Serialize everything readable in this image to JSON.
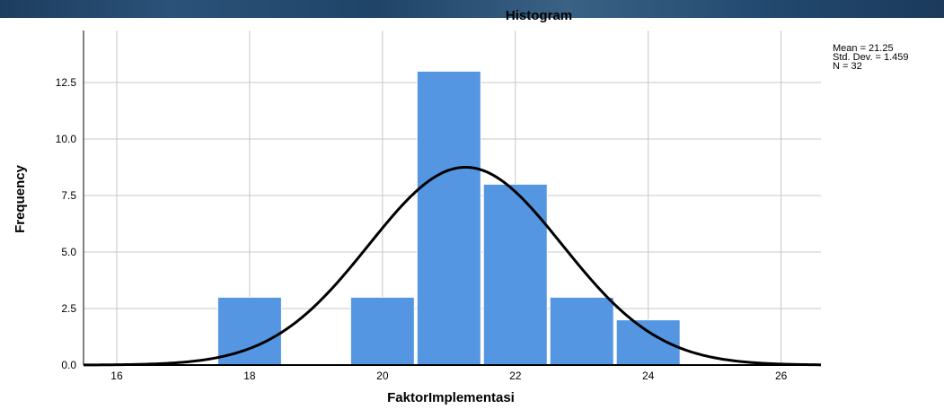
{
  "chart_data": {
    "type": "bar",
    "title": "Histogram",
    "xlabel": "FaktorImplementasi",
    "ylabel": "Frequency",
    "xlim": [
      15.5,
      26.6
    ],
    "ylim": [
      0,
      14.8
    ],
    "x_ticks": [
      "16",
      "18",
      "20",
      "22",
      "24",
      "26"
    ],
    "y_ticks": [
      "0.0",
      "2.5",
      "5.0",
      "7.5",
      "10.0",
      "12.5"
    ],
    "bins": [
      {
        "x": 18,
        "value": 3
      },
      {
        "x": 20,
        "value": 3
      },
      {
        "x": 21,
        "value": 13
      },
      {
        "x": 22,
        "value": 8
      },
      {
        "x": 23,
        "value": 3
      },
      {
        "x": 24,
        "value": 2
      }
    ],
    "normal_curve": {
      "mean": 21.25,
      "sd": 1.459,
      "n": 32,
      "bin_width": 1
    },
    "stats": {
      "mean": "Mean = 21.25",
      "sd": "Std. Dev. = 1.459",
      "n": "N = 32"
    },
    "grid": true,
    "colors": {
      "bar": "#5596e3",
      "curve": "#000000",
      "grid": "#c8c8c8"
    }
  }
}
